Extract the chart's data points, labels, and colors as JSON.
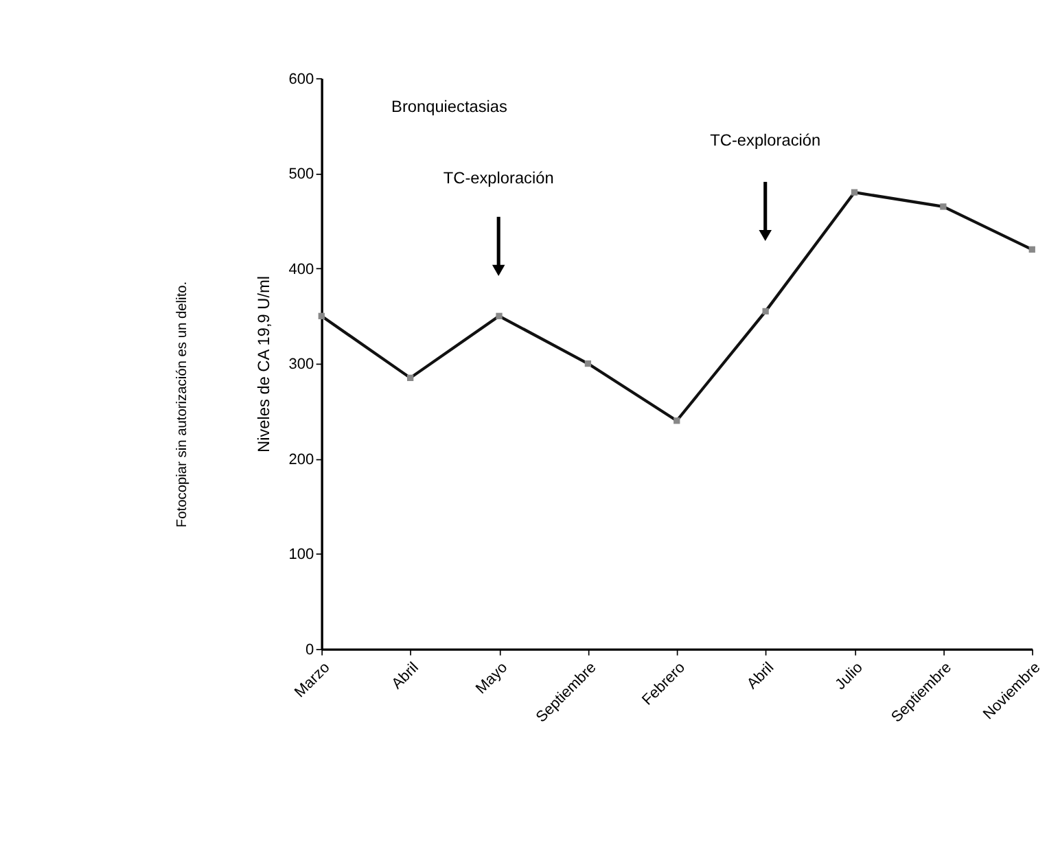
{
  "chart_data": {
    "type": "line",
    "categories": [
      "Marzo",
      "Abril",
      "Mayo",
      "Septiembre",
      "Febrero",
      "Abril",
      "Julio",
      "Septiembre",
      "Noviembre"
    ],
    "values": [
      350,
      285,
      350,
      300,
      240,
      355,
      480,
      465,
      420
    ],
    "color": "#111111",
    "ylabel": "Niveles de CA 19,9 U/ml",
    "ylim": [
      0,
      600
    ],
    "yticks": [
      0,
      100,
      200,
      300,
      400,
      500,
      600
    ],
    "marker": "square",
    "line_style": "solid",
    "grid": false,
    "annotations": [
      "Bronquiectasias",
      "Fotocopiar sin autorización es un delito.",
      "TC-exploración",
      "TC-exploración"
    ]
  }
}
